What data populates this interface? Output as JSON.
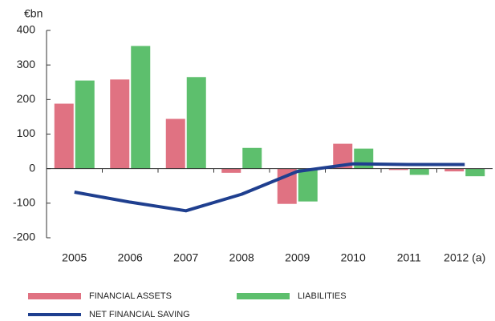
{
  "chart_data": {
    "type": "bar",
    "ylabel": "€bn",
    "categories": [
      "2005",
      "2006",
      "2007",
      "2008",
      "2009",
      "2010",
      "2011",
      "2012 (a)"
    ],
    "series": [
      {
        "name": "FINANCIAL ASSETS",
        "type": "bar",
        "color": "#e07282",
        "values": [
          188,
          258,
          144,
          -12,
          -102,
          72,
          -4,
          -8
        ]
      },
      {
        "name": "LIABILITIES",
        "type": "bar",
        "color": "#5dbf6d",
        "values": [
          255,
          355,
          265,
          60,
          -95,
          58,
          -18,
          -22
        ]
      },
      {
        "name": "NET FINANCIAL SAVING",
        "type": "line",
        "color": "#1f3f8f",
        "values": [
          -68,
          -97,
          -122,
          -74,
          -8,
          14,
          12,
          12
        ]
      }
    ],
    "ylim": [
      -200,
      400
    ],
    "yticks": [
      -200,
      -100,
      0,
      100,
      200,
      300,
      400
    ]
  }
}
